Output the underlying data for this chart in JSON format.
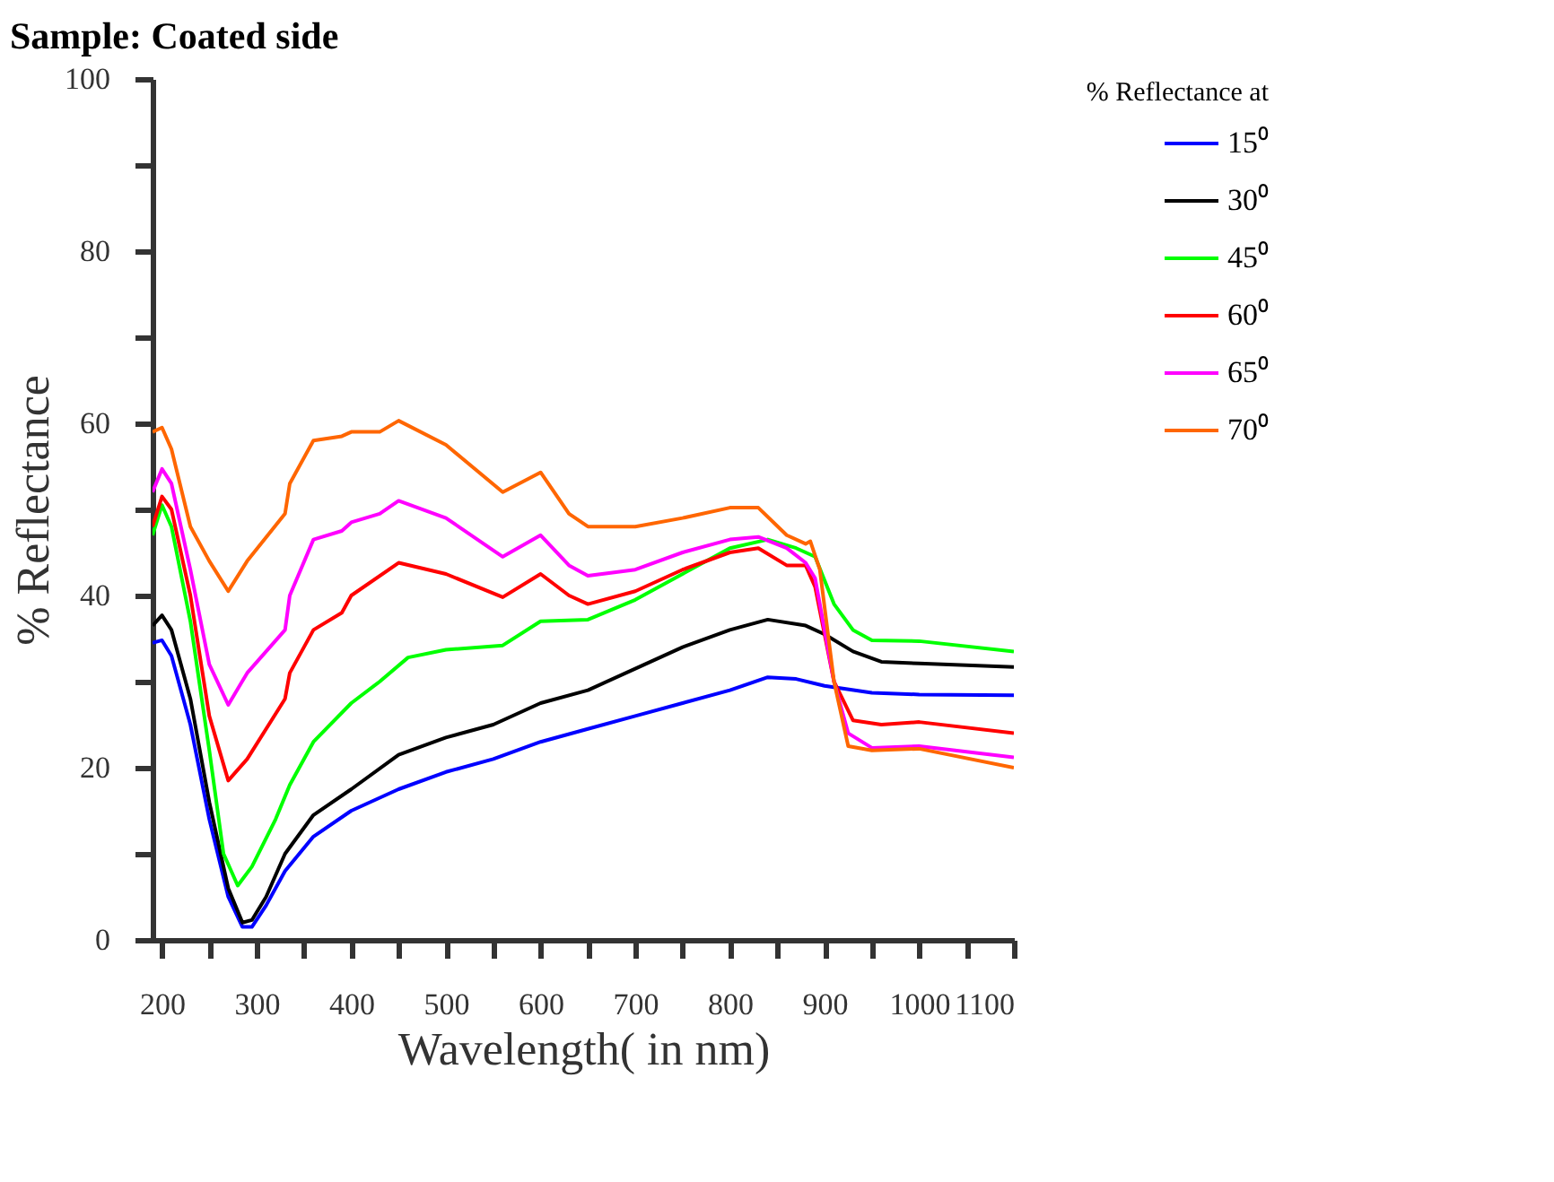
{
  "chart_data": {
    "type": "line",
    "title": "Sample: Coated side",
    "xlabel": "Wavelength( in nm)",
    "ylabel": "% Reflectance",
    "legend_title": "% Reflectance at",
    "xlim": [
      190,
      1100
    ],
    "ylim": [
      0,
      100
    ],
    "xticks": [
      200,
      {
        "value": 250,
        "label": null
      },
      300,
      {
        "value": 350,
        "label": null
      },
      400,
      {
        "value": 450,
        "label": null
      },
      500,
      {
        "value": 550,
        "label": null
      },
      600,
      {
        "value": 650,
        "label": null
      },
      700,
      {
        "value": 750,
        "label": null
      },
      800,
      {
        "value": 850,
        "label": null
      },
      900,
      {
        "value": 950,
        "label": null
      },
      1000,
      {
        "value": 1050,
        "label": null
      },
      1100
    ],
    "yticks": [
      0,
      {
        "value": 10,
        "label": null
      },
      20,
      {
        "value": 30,
        "label": null
      },
      40,
      {
        "value": 50,
        "label": null
      },
      60,
      {
        "value": 70,
        "label": null
      },
      80,
      {
        "value": 90,
        "label": null
      },
      100
    ],
    "grid": false,
    "legend": "top right",
    "line_style": "solid",
    "series": [
      {
        "name": "15⁰",
        "color": "#0000ff",
        "x": [
          190,
          200,
          210,
          230,
          250,
          270,
          285,
          295,
          310,
          330,
          360,
          400,
          450,
          500,
          550,
          600,
          650,
          700,
          750,
          800,
          840,
          870,
          900,
          950,
          1000,
          1100
        ],
        "values": [
          34.5,
          34.8,
          33,
          25,
          14,
          5,
          1.5,
          1.5,
          4,
          8,
          12,
          15,
          17.5,
          19.5,
          21,
          23,
          24.5,
          26,
          27.5,
          29,
          30.5,
          30.3,
          29.5,
          28.7,
          28.5,
          28.4
        ]
      },
      {
        "name": "30⁰",
        "color": "#000000",
        "x": [
          190,
          200,
          210,
          230,
          250,
          270,
          285,
          295,
          310,
          330,
          360,
          400,
          450,
          500,
          550,
          600,
          650,
          700,
          750,
          800,
          840,
          880,
          900,
          930,
          960,
          1000,
          1100
        ],
        "values": [
          36.5,
          37.7,
          36,
          28,
          16,
          6,
          2,
          2.3,
          5,
          10,
          14.5,
          17.5,
          21.5,
          23.5,
          25,
          27.5,
          29,
          31.5,
          34,
          36,
          37.2,
          36.5,
          35.5,
          33.5,
          32.3,
          32.1,
          31.7
        ]
      },
      {
        "name": "45⁰",
        "color": "#00ff00",
        "x": [
          190,
          200,
          210,
          230,
          250,
          265,
          280,
          295,
          320,
          335,
          360,
          400,
          430,
          460,
          500,
          560,
          600,
          650,
          700,
          750,
          800,
          840,
          870,
          890,
          910,
          930,
          950,
          1000,
          1100
        ],
        "values": [
          47,
          50.5,
          48,
          37,
          22,
          10,
          6.3,
          8.5,
          14,
          18,
          23,
          27.5,
          30,
          32.8,
          33.7,
          34.2,
          37,
          37.2,
          39.5,
          42.5,
          45.5,
          46.5,
          45.5,
          44.5,
          39,
          36,
          34.8,
          34.7,
          33.5
        ]
      },
      {
        "name": "60⁰",
        "color": "#ff0000",
        "x": [
          190,
          200,
          210,
          230,
          250,
          270,
          290,
          330,
          335,
          360,
          390,
          400,
          450,
          500,
          560,
          600,
          630,
          650,
          700,
          750,
          800,
          830,
          860,
          880,
          890,
          910,
          930,
          960,
          1000,
          1100
        ],
        "values": [
          48,
          51.5,
          50,
          40,
          26,
          18.5,
          21,
          28,
          31,
          36,
          38,
          40,
          43.8,
          42.5,
          39.8,
          42.5,
          40,
          39,
          40.5,
          43,
          45,
          45.5,
          43.5,
          43.5,
          41,
          30,
          25.5,
          25,
          25.3,
          24
        ]
      },
      {
        "name": "65⁰",
        "color": "#ff00ff",
        "x": [
          190,
          200,
          210,
          230,
          250,
          270,
          290,
          330,
          335,
          360,
          390,
          400,
          430,
          450,
          500,
          560,
          600,
          630,
          650,
          700,
          750,
          800,
          830,
          860,
          880,
          890,
          910,
          925,
          950,
          1000,
          1100
        ],
        "values": [
          52,
          54.7,
          53,
          43,
          32,
          27.3,
          31,
          36,
          40,
          46.5,
          47.5,
          48.5,
          49.5,
          51,
          49,
          44.5,
          47,
          43.5,
          42.3,
          43,
          45,
          46.5,
          46.8,
          45.5,
          43.8,
          42,
          30,
          24,
          22.3,
          22.5,
          21.2
        ]
      },
      {
        "name": "70⁰",
        "color": "#ff6600",
        "x": [
          190,
          200,
          210,
          230,
          250,
          270,
          290,
          330,
          335,
          360,
          390,
          400,
          430,
          450,
          500,
          560,
          600,
          630,
          650,
          700,
          750,
          800,
          830,
          860,
          880,
          885,
          895,
          910,
          925,
          950,
          1000,
          1100
        ],
        "values": [
          59,
          59.5,
          57,
          48,
          44,
          40.5,
          44,
          49.5,
          53,
          58,
          58.5,
          59,
          59,
          60.3,
          57.5,
          52,
          54.3,
          49.5,
          48,
          48,
          49,
          50.2,
          50.2,
          47,
          46,
          46.3,
          43,
          30,
          22.5,
          22,
          22.2,
          20
        ]
      }
    ]
  }
}
